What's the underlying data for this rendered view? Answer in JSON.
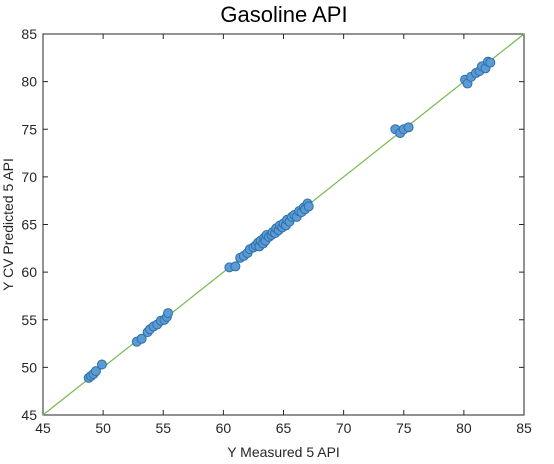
{
  "chart_data": {
    "type": "scatter",
    "title": "Gasoline API",
    "xlabel": "Y Measured 5 API",
    "ylabel": "Y CV Predicted 5 API",
    "xlim": [
      45,
      85
    ],
    "ylim": [
      45,
      85
    ],
    "xticks": [
      45,
      50,
      55,
      60,
      65,
      70,
      75,
      80,
      85
    ],
    "yticks": [
      45,
      50,
      55,
      60,
      65,
      70,
      75,
      80,
      85
    ],
    "grid": false,
    "reference_line": {
      "from": [
        45,
        45
      ],
      "to": [
        85,
        85
      ],
      "color": "#77b84a"
    },
    "marker_color": "#5b9bd5",
    "marker_edge_color": "#2e6fa8",
    "series": [
      {
        "x": [
          48.8,
          49.0,
          49.2,
          49.4,
          49.9,
          52.8,
          53.2,
          53.7,
          53.9,
          54.2,
          54.5,
          54.8,
          55.1,
          55.3,
          55.4,
          60.5,
          61.0,
          61.4,
          61.7,
          62.0,
          62.2,
          62.5,
          62.7,
          62.9,
          63.0,
          63.1,
          63.3,
          63.4,
          63.5,
          63.6,
          63.8,
          64.0,
          64.1,
          64.3,
          64.4,
          64.6,
          64.7,
          64.9,
          65.0,
          65.2,
          65.3,
          65.5,
          65.7,
          65.9,
          66.1,
          66.3,
          66.5,
          66.7,
          66.8,
          67.0,
          67.1,
          74.3,
          74.7,
          75.0,
          75.4,
          80.1,
          80.3,
          80.6,
          81.0,
          81.3,
          81.5,
          81.8,
          82.0,
          82.2
        ],
        "y": [
          48.9,
          49.1,
          49.3,
          49.6,
          50.3,
          52.7,
          53.0,
          53.7,
          54.0,
          54.3,
          54.5,
          54.9,
          55.0,
          55.3,
          55.7,
          60.5,
          60.6,
          61.5,
          61.7,
          62.0,
          62.4,
          62.6,
          62.8,
          63.1,
          62.7,
          63.3,
          63.0,
          63.6,
          63.3,
          63.9,
          63.7,
          63.9,
          64.2,
          64.1,
          64.6,
          64.4,
          64.9,
          64.7,
          65.1,
          64.9,
          65.5,
          65.3,
          65.8,
          66.0,
          65.8,
          66.4,
          66.3,
          66.8,
          66.6,
          67.2,
          66.9,
          75.0,
          74.6,
          75.0,
          75.2,
          80.2,
          79.8,
          80.5,
          80.9,
          81.1,
          81.6,
          81.4,
          82.1,
          82.0
        ]
      }
    ]
  }
}
